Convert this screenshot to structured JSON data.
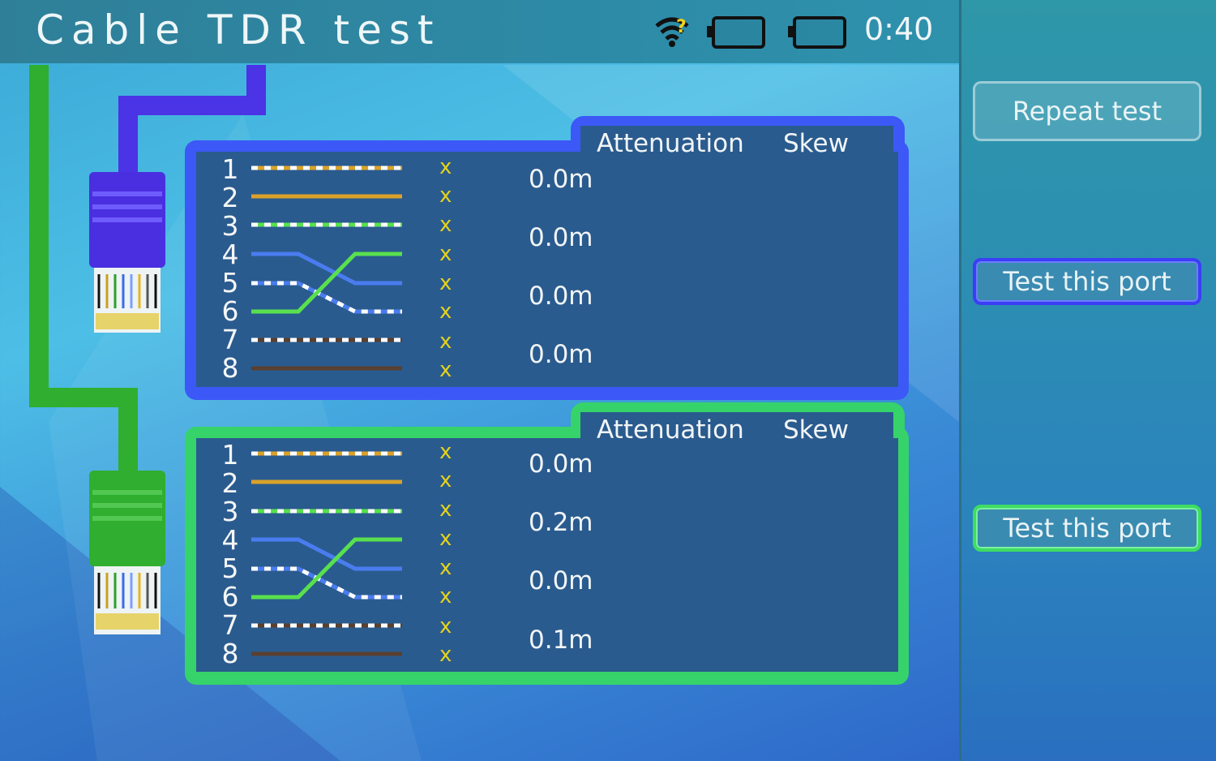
{
  "header": {
    "title": "Cable TDR test",
    "time": "0:40"
  },
  "icons": {
    "wifi": "wifi-question-icon",
    "battery1": "battery-icon",
    "battery2": "battery-icon"
  },
  "buttons": {
    "repeat": "Repeat test",
    "port1": "Test this port",
    "port2": "Test this port"
  },
  "colors": {
    "port1_accent": "#3c58f6",
    "port2_accent": "#36d36a",
    "fail_mark": "#e4d21e"
  },
  "panels": [
    {
      "col_attenuation": "Attenuation",
      "col_skew": "Skew",
      "pins": [
        "1",
        "2",
        "3",
        "4",
        "5",
        "6",
        "7",
        "8"
      ],
      "marks": [
        "x",
        "x",
        "x",
        "x",
        "x",
        "x",
        "x",
        "x"
      ],
      "attenuation": [
        "0.0m",
        "0.0m",
        "0.0m",
        "0.0m"
      ]
    },
    {
      "col_attenuation": "Attenuation",
      "col_skew": "Skew",
      "pins": [
        "1",
        "2",
        "3",
        "4",
        "5",
        "6",
        "7",
        "8"
      ],
      "marks": [
        "x",
        "x",
        "x",
        "x",
        "x",
        "x",
        "x",
        "x"
      ],
      "attenuation": [
        "0.0m",
        "0.2m",
        "0.0m",
        "0.1m"
      ]
    }
  ]
}
